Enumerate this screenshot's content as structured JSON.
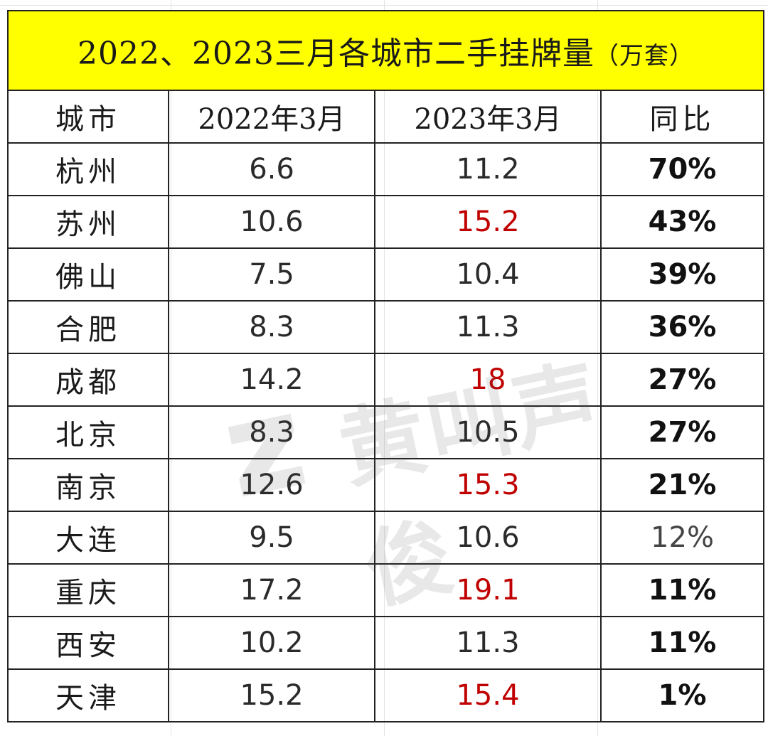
{
  "title": {
    "main": "2022、2023三月各城市二手挂牌量",
    "unit": "（万套）"
  },
  "header": {
    "city": "城市",
    "col_2022": "2022年3月",
    "col_2023": "2023年3月",
    "yoy": "同比"
  },
  "rows": [
    {
      "city": "杭州",
      "v2022": "6.6",
      "v2023": "11.2",
      "yoy": "70%"
    },
    {
      "city": "苏州",
      "v2022": "10.6",
      "v2023": "15.2",
      "yoy": "43%"
    },
    {
      "city": "佛山",
      "v2022": "7.5",
      "v2023": "10.4",
      "yoy": "39%"
    },
    {
      "city": "合肥",
      "v2022": "8.3",
      "v2023": "11.3",
      "yoy": "36%"
    },
    {
      "city": "成都",
      "v2022": "14.2",
      "v2023": "18",
      "yoy": "27%"
    },
    {
      "city": "北京",
      "v2022": "8.3",
      "v2023": "10.5",
      "yoy": "27%"
    },
    {
      "city": "南京",
      "v2022": "12.6",
      "v2023": "15.3",
      "yoy": "21%"
    },
    {
      "city": "大连",
      "v2022": "9.5",
      "v2023": "10.6",
      "yoy": "12%"
    },
    {
      "city": "重庆",
      "v2022": "17.2",
      "v2023": "19.1",
      "yoy": "11%"
    },
    {
      "city": "西安",
      "v2022": "10.2",
      "v2023": "11.3",
      "yoy": "11%"
    },
    {
      "city": "天津",
      "v2022": "15.2",
      "v2023": "15.4",
      "yoy": "1%"
    }
  ],
  "colors": {
    "title_background": "#ffff00",
    "highlight_red": "#c00000",
    "border": "#222222"
  },
  "watermark": {
    "text": "黄叫声俊",
    "icon": "z-logo-icon"
  }
}
